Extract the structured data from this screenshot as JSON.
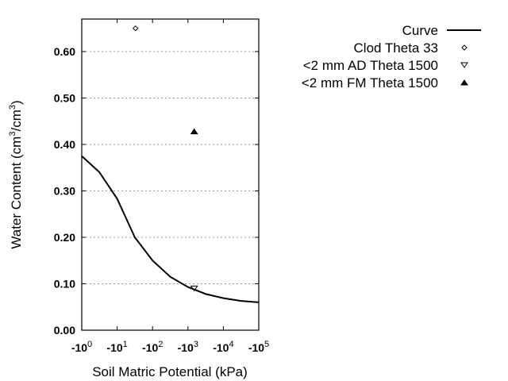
{
  "chart_data": {
    "type": "line",
    "xlabel": "Soil Matric Potential (kPa)",
    "ylabel": "Water Content (cm3/cm3)",
    "ylabel_parts": [
      "Water Content (cm",
      "3",
      "/cm",
      "3",
      ")"
    ],
    "x_scale": "log",
    "xlim": [
      1,
      100000
    ],
    "ylim": [
      0,
      0.67
    ],
    "grid": "horizontal dotted",
    "legend": "right",
    "x_ticks": [
      {
        "base": "-10",
        "exp": "0",
        "v": 1
      },
      {
        "base": "-10",
        "exp": "1",
        "v": 10
      },
      {
        "base": "-10",
        "exp": "2",
        "v": 100
      },
      {
        "base": "-10",
        "exp": "3",
        "v": 1000
      },
      {
        "base": "-10",
        "exp": "4",
        "v": 10000
      },
      {
        "base": "-10",
        "exp": "5",
        "v": 100000
      }
    ],
    "y_ticks": [
      {
        "label": "0.00",
        "v": 0
      },
      {
        "label": "0.10",
        "v": 0.1
      },
      {
        "label": "0.20",
        "v": 0.2
      },
      {
        "label": "0.30",
        "v": 0.3
      },
      {
        "label": "0.40",
        "v": 0.4
      },
      {
        "label": "0.50",
        "v": 0.5
      },
      {
        "label": "0.60",
        "v": 0.6
      }
    ],
    "series": [
      {
        "name": "Curve",
        "kind": "line",
        "x": [
          1,
          3.16,
          10,
          31.6,
          100,
          316,
          1000,
          3160,
          10000,
          31600,
          100000
        ],
        "y": [
          0.375,
          0.34,
          0.283,
          0.2,
          0.15,
          0.115,
          0.093,
          0.078,
          0.069,
          0.063,
          0.06
        ]
      },
      {
        "name": "Clod Theta 33",
        "kind": "diamond",
        "x": [
          33
        ],
        "y": [
          0.65
        ]
      },
      {
        "name": "<2 mm AD Theta 1500",
        "kind": "triangle-down",
        "x": [
          1500
        ],
        "y": [
          0.09
        ]
      },
      {
        "name": "<2 mm FM Theta 1500",
        "kind": "triangle-up-filled",
        "x": [
          1500
        ],
        "y": [
          0.428
        ]
      }
    ]
  }
}
